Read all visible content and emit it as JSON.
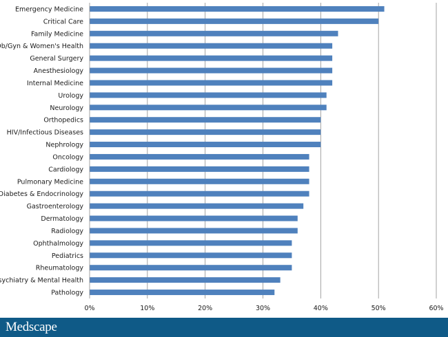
{
  "chart_data": {
    "type": "bar",
    "orientation": "horizontal",
    "categories": [
      "Emergency Medicine",
      "Critical Care",
      "Family Medicine",
      "Ob/Gyn & Women's Health",
      "General Surgery",
      "Anesthesiology",
      "Internal Medicine",
      "Urology",
      "Neurology",
      "Orthopedics",
      "HIV/Infectious Diseases",
      "Nephrology",
      "Oncology",
      "Cardiology",
      "Pulmonary Medicine",
      "Diabetes & Endocrinology",
      "Gastroenterology",
      "Dermatology",
      "Radiology",
      "Ophthalmology",
      "Pediatrics",
      "Rheumatology",
      "Psychiatry & Mental Health",
      "Pathology"
    ],
    "values": [
      51,
      50,
      43,
      42,
      42,
      42,
      42,
      41,
      41,
      40,
      40,
      40,
      38,
      38,
      38,
      38,
      37,
      36,
      36,
      35,
      35,
      35,
      33,
      32
    ],
    "xlim": [
      0,
      60
    ],
    "xticks": [
      "0%",
      "10%",
      "20%",
      "30%",
      "40%",
      "50%",
      "60%"
    ],
    "grid": true,
    "bar_color": "#4f81bd"
  },
  "footer": {
    "logo_text": "Medscape",
    "background": "#0f5a87"
  }
}
